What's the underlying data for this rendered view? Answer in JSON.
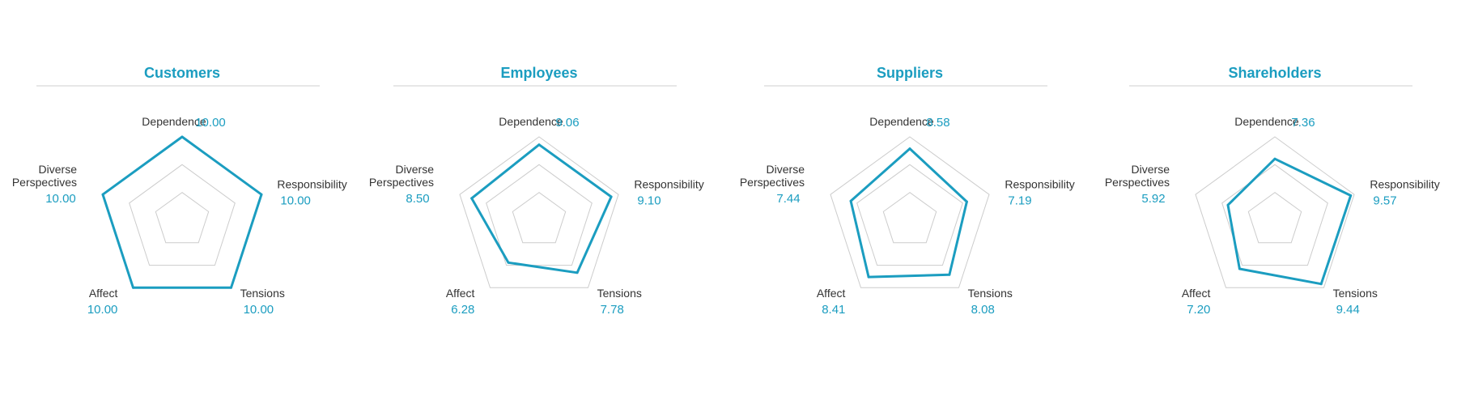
{
  "chart_data": [
    {
      "type": "radar",
      "title": "Customers",
      "axes": [
        "Dependence",
        "Responsibility",
        "Tensions",
        "Affect",
        "Diverse Perspectives"
      ],
      "values": [
        10.0,
        10.0,
        10.0,
        10.0,
        10.0
      ],
      "value_labels": [
        "10.00",
        "10.00",
        "10.00",
        "10.00",
        "10.00"
      ],
      "rlim": [
        0,
        10
      ],
      "grid_rings": 3
    },
    {
      "type": "radar",
      "title": "Employees",
      "axes": [
        "Dependence",
        "Responsibility",
        "Tensions",
        "Affect",
        "Diverse Perspectives"
      ],
      "values": [
        9.06,
        9.1,
        7.78,
        6.28,
        8.5
      ],
      "value_labels": [
        "9.06",
        "9.10",
        "7.78",
        "6.28",
        "8.50"
      ],
      "rlim": [
        0,
        10
      ],
      "grid_rings": 3
    },
    {
      "type": "radar",
      "title": "Suppliers",
      "axes": [
        "Dependence",
        "Responsibility",
        "Tensions",
        "Affect",
        "Diverse Perspectives"
      ],
      "values": [
        8.58,
        7.19,
        8.08,
        8.41,
        7.44
      ],
      "value_labels": [
        "8.58",
        "7.19",
        "8.08",
        "8.41",
        "7.44"
      ],
      "rlim": [
        0,
        10
      ],
      "grid_rings": 3
    },
    {
      "type": "radar",
      "title": "Shareholders",
      "axes": [
        "Dependence",
        "Responsibility",
        "Tensions",
        "Affect",
        "Diverse Perspectives"
      ],
      "values": [
        7.36,
        9.57,
        9.44,
        7.2,
        5.92
      ],
      "value_labels": [
        "7.36",
        "9.57",
        "9.44",
        "7.20",
        "5.92"
      ],
      "rlim": [
        0,
        10
      ],
      "grid_rings": 3
    }
  ],
  "colors": {
    "accent": "#1b9dc0",
    "grid": "#cccccc",
    "title_rule": "#cfcfcf",
    "label": "#333333"
  }
}
